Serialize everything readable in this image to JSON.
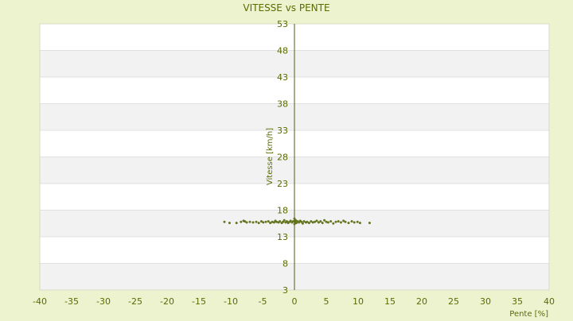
{
  "colors": {
    "page_background": "#eef3cf",
    "band_light": "#ffffff",
    "band_dark": "#f2f2f2",
    "grid": "#e0e0e0",
    "axis": "#4d5a1a",
    "text": "#5a6b00",
    "points": "#6b7d1a"
  },
  "chart_data": {
    "type": "scatter",
    "title": "VITESSE vs PENTE",
    "xlabel": "Pente [%]",
    "ylabel": "Vitesse [km/h]",
    "xlim": [
      -40,
      40
    ],
    "ylim": [
      3,
      53
    ],
    "x_ticks": [
      -40,
      -35,
      -30,
      -25,
      -20,
      -15,
      -10,
      -5,
      0,
      5,
      10,
      15,
      20,
      25,
      30,
      35,
      40
    ],
    "y_ticks": [
      3,
      8,
      13,
      18,
      23,
      28,
      33,
      38,
      43,
      48,
      53
    ],
    "grid": true,
    "alternating_bands": true,
    "legend": "none",
    "series": [
      {
        "points": [
          [
            -11.0,
            15.8
          ],
          [
            -10.2,
            15.6
          ],
          [
            -9.1,
            15.6
          ],
          [
            -8.4,
            15.8
          ],
          [
            -8.0,
            16.0
          ],
          [
            -7.8,
            15.9
          ],
          [
            -7.5,
            15.7
          ],
          [
            -7.0,
            15.8
          ],
          [
            -6.5,
            15.7
          ],
          [
            -6.0,
            15.8
          ],
          [
            -5.6,
            15.6
          ],
          [
            -5.2,
            15.9
          ],
          [
            -4.9,
            15.7
          ],
          [
            -4.5,
            15.8
          ],
          [
            -4.1,
            15.9
          ],
          [
            -3.8,
            15.6
          ],
          [
            -3.5,
            15.8
          ],
          [
            -3.2,
            15.7
          ],
          [
            -3.0,
            16.0
          ],
          [
            -2.8,
            15.8
          ],
          [
            -2.5,
            15.7
          ],
          [
            -2.3,
            15.9
          ],
          [
            -2.0,
            15.6
          ],
          [
            -1.8,
            15.8
          ],
          [
            -1.6,
            16.1
          ],
          [
            -1.4,
            15.7
          ],
          [
            -1.2,
            15.9
          ],
          [
            -1.0,
            15.6
          ],
          [
            -0.8,
            15.8
          ],
          [
            -0.6,
            16.0
          ],
          [
            -0.4,
            15.7
          ],
          [
            -0.2,
            15.9
          ],
          [
            0.0,
            16.4
          ],
          [
            0.0,
            15.4
          ],
          [
            0.1,
            15.8
          ],
          [
            0.2,
            16.1
          ],
          [
            0.3,
            15.6
          ],
          [
            0.5,
            15.9
          ],
          [
            0.7,
            15.7
          ],
          [
            0.9,
            16.0
          ],
          [
            1.1,
            15.8
          ],
          [
            1.3,
            15.5
          ],
          [
            1.5,
            15.9
          ],
          [
            1.8,
            15.7
          ],
          [
            2.0,
            15.8
          ],
          [
            2.3,
            15.6
          ],
          [
            2.6,
            15.9
          ],
          [
            2.9,
            15.7
          ],
          [
            3.2,
            15.8
          ],
          [
            3.5,
            16.0
          ],
          [
            3.8,
            15.7
          ],
          [
            4.1,
            15.9
          ],
          [
            4.4,
            15.6
          ],
          [
            4.7,
            16.1
          ],
          [
            5.0,
            15.8
          ],
          [
            5.3,
            15.7
          ],
          [
            5.7,
            15.9
          ],
          [
            6.1,
            15.5
          ],
          [
            6.5,
            15.8
          ],
          [
            6.9,
            15.9
          ],
          [
            7.3,
            15.7
          ],
          [
            7.7,
            16.0
          ],
          [
            8.0,
            15.8
          ],
          [
            8.5,
            15.6
          ],
          [
            9.0,
            15.9
          ],
          [
            9.4,
            15.7
          ],
          [
            9.9,
            15.8
          ],
          [
            10.3,
            15.6
          ],
          [
            11.8,
            15.6
          ]
        ]
      }
    ]
  }
}
